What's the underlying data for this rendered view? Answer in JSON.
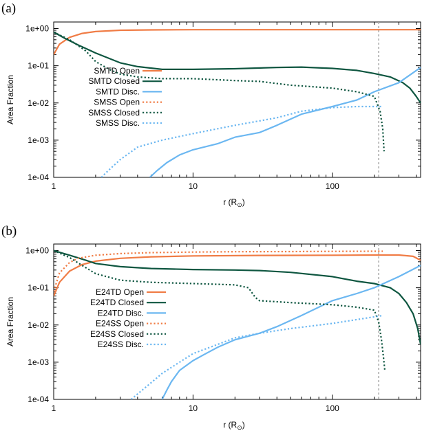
{
  "chart_data": [
    {
      "type": "line",
      "panel_label": "(a)",
      "xlabel": "r (R",
      "xlabel_sub": "⊙",
      "xlabel_close": ")",
      "ylabel": "Area Fraction",
      "xscale": "log",
      "yscale": "log",
      "xlim": [
        1,
        430
      ],
      "ylim": [
        0.0001,
        1.5
      ],
      "x_ticks": [
        1,
        10,
        100
      ],
      "x_tick_labels": [
        "1",
        "10",
        "100"
      ],
      "y_ticks": [
        1,
        0.1,
        0.01,
        0.001,
        0.0001
      ],
      "y_tick_labels": [
        "1e+00",
        "1e-01",
        "1e-02",
        "1e-03",
        "1e-04"
      ],
      "vline_x": 215,
      "legend_position": "center-left",
      "series": [
        {
          "name": "SMTD Open",
          "color": "#f07c45",
          "style": "solid",
          "x": [
            1,
            1.1,
            1.3,
            1.6,
            2,
            3,
            5,
            10,
            20,
            50,
            100,
            200,
            430
          ],
          "y": [
            0.2,
            0.38,
            0.58,
            0.74,
            0.83,
            0.9,
            0.92,
            0.93,
            0.93,
            0.93,
            0.93,
            0.93,
            0.93
          ]
        },
        {
          "name": "SMTD Closed",
          "color": "#0e5640",
          "style": "solid",
          "x": [
            1,
            1.2,
            1.5,
            2,
            3,
            4,
            6,
            10,
            20,
            40,
            60,
            100,
            150,
            200,
            260,
            320,
            360,
            400,
            430
          ],
          "y": [
            0.8,
            0.55,
            0.36,
            0.22,
            0.12,
            0.095,
            0.08,
            0.08,
            0.083,
            0.09,
            0.092,
            0.085,
            0.075,
            0.062,
            0.05,
            0.035,
            0.025,
            0.015,
            0.01
          ]
        },
        {
          "name": "SMTD Disc.",
          "color": "#6bb7f1",
          "style": "solid",
          "x": [
            4.9,
            5.5,
            6.5,
            8,
            10,
            15,
            20,
            30,
            40,
            60,
            100,
            150,
            200,
            300,
            430
          ],
          "y": [
            0.0001,
            0.00015,
            0.00025,
            0.0004,
            0.00055,
            0.0008,
            0.0012,
            0.0016,
            0.0025,
            0.005,
            0.008,
            0.012,
            0.02,
            0.035,
            0.09
          ]
        },
        {
          "name": "SMSS Open",
          "color": "#f07c45",
          "style": "dotted",
          "x": [],
          "y": []
        },
        {
          "name": "SMSS Closed",
          "color": "#0e5640",
          "style": "dotted",
          "x": [
            1,
            1.3,
            1.7,
            2,
            2.5,
            3,
            4,
            6,
            10,
            20,
            30,
            50,
            100,
            150,
            200,
            220,
            230,
            235
          ],
          "y": [
            0.8,
            0.5,
            0.25,
            0.13,
            0.08,
            0.06,
            0.05,
            0.045,
            0.045,
            0.04,
            0.038,
            0.03,
            0.025,
            0.02,
            0.015,
            0.006,
            0.002,
            0.0005
          ]
        },
        {
          "name": "SMSS Disc.",
          "color": "#6bb7f1",
          "style": "dotted",
          "x": [
            2.2,
            2.5,
            3,
            4,
            6,
            10,
            20,
            40,
            60,
            100,
            150,
            200,
            230
          ],
          "y": [
            0.0001,
            0.00016,
            0.0003,
            0.00065,
            0.001,
            0.0015,
            0.0025,
            0.004,
            0.006,
            0.0075,
            0.008,
            0.008,
            0.008
          ]
        }
      ]
    },
    {
      "type": "line",
      "panel_label": "(b)",
      "xlabel": "r (R",
      "xlabel_sub": "⊙",
      "xlabel_close": ")",
      "ylabel": "Area Fraction",
      "xscale": "log",
      "yscale": "log",
      "xlim": [
        1,
        430
      ],
      "ylim": [
        0.0001,
        1.5
      ],
      "x_ticks": [
        1,
        10,
        100
      ],
      "x_tick_labels": [
        "1",
        "10",
        "100"
      ],
      "y_ticks": [
        1,
        0.1,
        0.01,
        0.001,
        0.0001
      ],
      "y_tick_labels": [
        "1e+00",
        "1e-01",
        "1e-02",
        "1e-03",
        "1e-04"
      ],
      "vline_x": 215,
      "legend_position": "center-left",
      "series": [
        {
          "name": "E24TD Open",
          "color": "#f07c45",
          "style": "solid",
          "x": [
            1,
            1.1,
            1.3,
            1.6,
            2,
            3,
            5,
            10,
            30,
            100,
            200,
            300,
            380,
            430
          ],
          "y": [
            0.06,
            0.14,
            0.28,
            0.42,
            0.52,
            0.62,
            0.68,
            0.72,
            0.74,
            0.75,
            0.76,
            0.76,
            0.7,
            0.55
          ]
        },
        {
          "name": "E24TD Closed",
          "color": "#0e5640",
          "style": "solid",
          "x": [
            1,
            1.3,
            1.7,
            2,
            3,
            5,
            10,
            20,
            30,
            50,
            100,
            150,
            200,
            260,
            300,
            340,
            380,
            410,
            430
          ],
          "y": [
            1,
            0.75,
            0.55,
            0.45,
            0.37,
            0.33,
            0.31,
            0.3,
            0.29,
            0.26,
            0.2,
            0.15,
            0.13,
            0.1,
            0.07,
            0.04,
            0.02,
            0.008,
            0.003
          ]
        },
        {
          "name": "E24TD Disc.",
          "color": "#6bb7f1",
          "style": "solid",
          "x": [
            6,
            6.5,
            7,
            8,
            10,
            12,
            15,
            20,
            25,
            30,
            40,
            60,
            100,
            150,
            200,
            300,
            430
          ],
          "y": [
            0.0001,
            0.00018,
            0.0003,
            0.0006,
            0.0011,
            0.0016,
            0.0025,
            0.004,
            0.005,
            0.006,
            0.009,
            0.018,
            0.045,
            0.07,
            0.1,
            0.2,
            0.4
          ]
        },
        {
          "name": "E24SS Open",
          "color": "#f07c45",
          "style": "dotted",
          "x": [
            1,
            1.1,
            1.3,
            1.5,
            2,
            3,
            5,
            10,
            20,
            50,
            100,
            200,
            230
          ],
          "y": [
            0.08,
            0.25,
            0.48,
            0.62,
            0.75,
            0.83,
            0.88,
            0.91,
            0.93,
            0.94,
            0.95,
            0.96,
            0.96
          ]
        },
        {
          "name": "E24SS Closed",
          "color": "#0e5640",
          "style": "dotted",
          "x": [
            1,
            1.3,
            1.6,
            2,
            3,
            5,
            10,
            20,
            25,
            28,
            30,
            50,
            100,
            150,
            200,
            215,
            225,
            232,
            238
          ],
          "y": [
            1,
            0.65,
            0.4,
            0.24,
            0.16,
            0.14,
            0.13,
            0.12,
            0.1,
            0.055,
            0.045,
            0.04,
            0.035,
            0.03,
            0.025,
            0.012,
            0.004,
            0.0015,
            0.0006
          ]
        },
        {
          "name": "E24SS Disc.",
          "color": "#6bb7f1",
          "style": "dotted",
          "x": [
            3.6,
            4,
            5,
            6,
            8,
            10,
            15,
            20,
            30,
            50,
            100,
            150,
            230
          ],
          "y": [
            0.0001,
            0.00014,
            0.00028,
            0.0005,
            0.001,
            0.0017,
            0.003,
            0.0045,
            0.006,
            0.008,
            0.011,
            0.014,
            0.018
          ]
        }
      ]
    }
  ]
}
